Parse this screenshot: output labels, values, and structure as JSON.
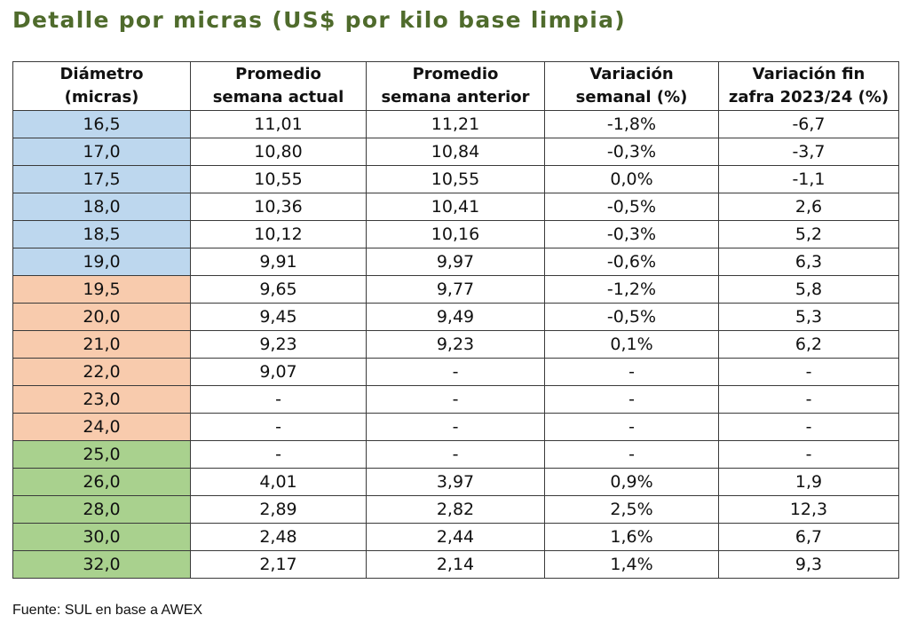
{
  "title": "Detalle por micras (US$ por kilo base limpia)",
  "table": {
    "headers": [
      [
        "Diámetro",
        "(micras)"
      ],
      [
        "Promedio",
        "semana actual"
      ],
      [
        "Promedio",
        "semana anterior"
      ],
      [
        "Variación",
        "semanal (%)"
      ],
      [
        "Variación fin",
        "zafra 2023/24 (%)"
      ]
    ],
    "group_colors": {
      "blue": "#bdd7ee",
      "peach": "#f8cbad",
      "green": "#a9d18e"
    },
    "rows": [
      {
        "group": "blue",
        "cells": [
          "16,5",
          "11,01",
          "11,21",
          "-1,8%",
          "-6,7"
        ]
      },
      {
        "group": "blue",
        "cells": [
          "17,0",
          "10,80",
          "10,84",
          "-0,3%",
          "-3,7"
        ]
      },
      {
        "group": "blue",
        "cells": [
          "17,5",
          "10,55",
          "10,55",
          "0,0%",
          "-1,1"
        ]
      },
      {
        "group": "blue",
        "cells": [
          "18,0",
          "10,36",
          "10,41",
          "-0,5%",
          "2,6"
        ]
      },
      {
        "group": "blue",
        "cells": [
          "18,5",
          "10,12",
          "10,16",
          "-0,3%",
          "5,2"
        ]
      },
      {
        "group": "blue",
        "cells": [
          "19,0",
          "9,91",
          "9,97",
          "-0,6%",
          "6,3"
        ]
      },
      {
        "group": "peach",
        "cells": [
          "19,5",
          "9,65",
          "9,77",
          "-1,2%",
          "5,8"
        ]
      },
      {
        "group": "peach",
        "cells": [
          "20,0",
          "9,45",
          "9,49",
          "-0,5%",
          "5,3"
        ]
      },
      {
        "group": "peach",
        "cells": [
          "21,0",
          "9,23",
          "9,23",
          "0,1%",
          "6,2"
        ]
      },
      {
        "group": "peach",
        "cells": [
          "22,0",
          "9,07",
          "-",
          "-",
          "-"
        ]
      },
      {
        "group": "peach",
        "cells": [
          "23,0",
          "-",
          "-",
          "-",
          "-"
        ]
      },
      {
        "group": "peach",
        "cells": [
          "24,0",
          "-",
          "-",
          "-",
          "-"
        ]
      },
      {
        "group": "green",
        "cells": [
          "25,0",
          "-",
          "-",
          "-",
          "-"
        ]
      },
      {
        "group": "green",
        "cells": [
          "26,0",
          "4,01",
          "3,97",
          "0,9%",
          "1,9"
        ]
      },
      {
        "group": "green",
        "cells": [
          "28,0",
          "2,89",
          "2,82",
          "2,5%",
          "12,3"
        ]
      },
      {
        "group": "green",
        "cells": [
          "30,0",
          "2,48",
          "2,44",
          "1,6%",
          "6,7"
        ]
      },
      {
        "group": "green",
        "cells": [
          "32,0",
          "2,17",
          "2,14",
          "1,4%",
          "9,3"
        ]
      }
    ]
  },
  "source": "Fuente: SUL en base a AWEX"
}
